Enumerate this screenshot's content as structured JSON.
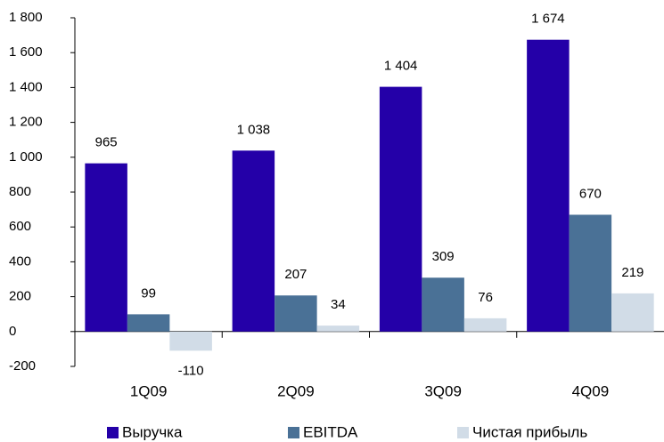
{
  "chart_data": {
    "type": "bar",
    "categories": [
      "1Q09",
      "2Q09",
      "3Q09",
      "4Q09"
    ],
    "series": [
      {
        "name": "Выручка",
        "color": "#2400a8",
        "values": [
          965,
          1038,
          1404,
          1674
        ],
        "value_labels": [
          "965",
          "1 038",
          "1 404",
          "1 674"
        ]
      },
      {
        "name": "EBITDA",
        "color": "#4a7196",
        "values": [
          99,
          207,
          309,
          670
        ]
      },
      {
        "name": "Чистая прибыль",
        "color": "#d1dce7",
        "values": [
          -110,
          34,
          76,
          219
        ]
      }
    ],
    "ylim": [
      -200,
      1800
    ],
    "yticks": [
      {
        "value": -200,
        "label": "-200"
      },
      0,
      200,
      400,
      600,
      800,
      {
        "value": 1000,
        "label": "1 000"
      },
      {
        "value": 1200,
        "label": "1 200"
      },
      {
        "value": 1400,
        "label": "1 400"
      },
      {
        "value": 1600,
        "label": "1 600"
      },
      {
        "value": 1800,
        "label": "1 800"
      }
    ],
    "negative_color": "#e00000",
    "legend": "bottom"
  }
}
